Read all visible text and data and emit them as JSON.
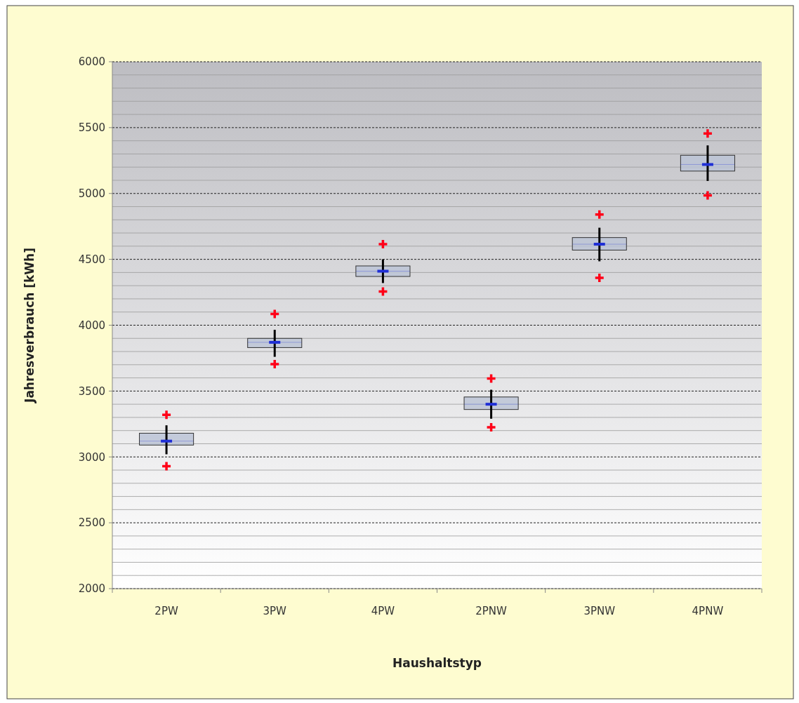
{
  "chart_data": {
    "type": "box",
    "xlabel": "Haushaltstyp",
    "ylabel": "Jahresverbrauch [kWh]",
    "categories": [
      "2PW",
      "3PW",
      "4PW",
      "2PNW",
      "3PNW",
      "4PNW"
    ],
    "color": "#bcc4d6",
    "ylim": [
      2000,
      6000
    ],
    "yticks": [
      2000,
      2500,
      3000,
      3500,
      4000,
      4500,
      5000,
      5500,
      6000
    ],
    "grid": true,
    "boxes": [
      {
        "low": 3020,
        "q1": 3090,
        "median": 3120,
        "q3": 3180,
        "high": 3240,
        "outliers": [
          3320,
          2930
        ]
      },
      {
        "low": 3760,
        "q1": 3830,
        "median": 3870,
        "q3": 3900,
        "high": 3965,
        "outliers": [
          4085,
          3705
        ]
      },
      {
        "low": 4320,
        "q1": 4370,
        "median": 4410,
        "q3": 4450,
        "high": 4500,
        "outliers": [
          4615,
          4255
        ]
      },
      {
        "low": 3290,
        "q1": 3360,
        "median": 3400,
        "q3": 3455,
        "high": 3510,
        "outliers": [
          3595,
          3225
        ]
      },
      {
        "low": 4485,
        "q1": 4570,
        "median": 4615,
        "q3": 4665,
        "high": 4740,
        "outliers": [
          4840,
          4360
        ]
      },
      {
        "low": 5095,
        "q1": 5170,
        "median": 5220,
        "q3": 5290,
        "high": 5365,
        "outliers": [
          5455,
          4985
        ]
      }
    ]
  }
}
